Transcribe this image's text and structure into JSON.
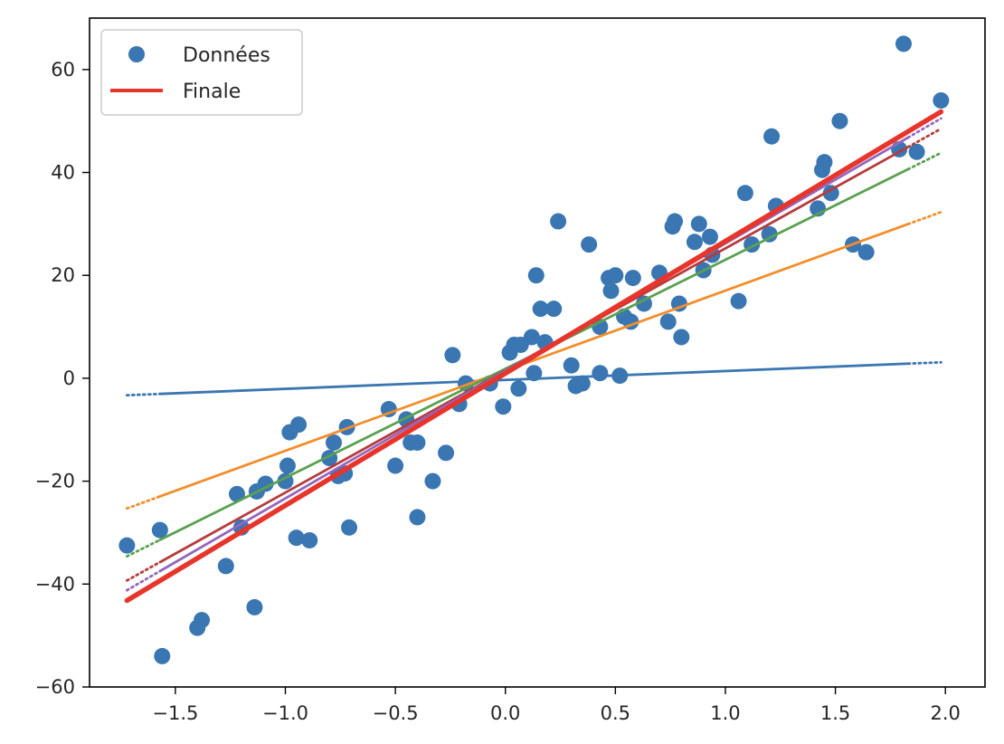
{
  "chart_data": {
    "type": "scatter",
    "title": "",
    "xlabel": "",
    "ylabel": "",
    "xlim": [
      -1.89,
      2.18
    ],
    "ylim": [
      -60,
      70
    ],
    "grid": false,
    "legend_placement": "top-left",
    "x_ticks": [
      -1.5,
      -1.0,
      -0.5,
      0.0,
      0.5,
      1.0,
      1.5,
      2.0
    ],
    "x_tick_labels": [
      "−1.5",
      "−1.0",
      "−0.5",
      "0.0",
      "0.5",
      "1.0",
      "1.5",
      "2.0"
    ],
    "y_ticks": [
      -60,
      -40,
      -20,
      0,
      20,
      40,
      60
    ],
    "y_tick_labels": [
      "−60",
      "−40",
      "−20",
      "0",
      "20",
      "40",
      "60"
    ],
    "legend": [
      {
        "label": "Données",
        "kind": "marker",
        "color": "#3a76b2"
      },
      {
        "label": "Finale",
        "kind": "line",
        "color": "#e8352b"
      }
    ],
    "series": [
      {
        "name": "Données",
        "kind": "scatter",
        "color": "#3a76b2",
        "points": [
          [
            -1.72,
            -32.5
          ],
          [
            -1.57,
            -29.5
          ],
          [
            -1.56,
            -54.0
          ],
          [
            -1.4,
            -48.5
          ],
          [
            -1.38,
            -47.0
          ],
          [
            -1.27,
            -36.5
          ],
          [
            -1.22,
            -22.5
          ],
          [
            -1.2,
            -29.0
          ],
          [
            -1.14,
            -44.5
          ],
          [
            -1.13,
            -22.0
          ],
          [
            -1.09,
            -20.5
          ],
          [
            -1.0,
            -20.0
          ],
          [
            -0.99,
            -17.0
          ],
          [
            -0.98,
            -10.5
          ],
          [
            -0.94,
            -9.0
          ],
          [
            -0.95,
            -31.0
          ],
          [
            -0.89,
            -31.5
          ],
          [
            -0.78,
            -12.5
          ],
          [
            -0.8,
            -15.5
          ],
          [
            -0.76,
            -19.0
          ],
          [
            -0.73,
            -18.5
          ],
          [
            -0.72,
            -9.5
          ],
          [
            -0.71,
            -29.0
          ],
          [
            -0.53,
            -6.0
          ],
          [
            -0.5,
            -17.0
          ],
          [
            -0.45,
            -8.0
          ],
          [
            -0.43,
            -12.5
          ],
          [
            -0.4,
            -12.5
          ],
          [
            -0.4,
            -27.0
          ],
          [
            -0.33,
            -20.0
          ],
          [
            -0.27,
            -14.5
          ],
          [
            -0.24,
            4.5
          ],
          [
            -0.21,
            -5.0
          ],
          [
            -0.18,
            -1.0
          ],
          [
            -0.07,
            -1.0
          ],
          [
            -0.01,
            -5.5
          ],
          [
            0.02,
            5.0
          ],
          [
            0.04,
            6.5
          ],
          [
            0.06,
            -2.0
          ],
          [
            0.07,
            6.5
          ],
          [
            0.12,
            8.0
          ],
          [
            0.13,
            1.0
          ],
          [
            0.14,
            20.0
          ],
          [
            0.16,
            13.5
          ],
          [
            0.18,
            7.0
          ],
          [
            0.22,
            13.5
          ],
          [
            0.24,
            30.5
          ],
          [
            0.3,
            2.5
          ],
          [
            0.32,
            -1.5
          ],
          [
            0.35,
            -1.0
          ],
          [
            0.38,
            26.0
          ],
          [
            0.43,
            10.0
          ],
          [
            0.43,
            1.0
          ],
          [
            0.47,
            19.5
          ],
          [
            0.48,
            17.0
          ],
          [
            0.5,
            20.0
          ],
          [
            0.52,
            0.5
          ],
          [
            0.54,
            12.0
          ],
          [
            0.57,
            11.0
          ],
          [
            0.58,
            19.5
          ],
          [
            0.63,
            14.5
          ],
          [
            0.7,
            20.5
          ],
          [
            0.74,
            11.0
          ],
          [
            0.76,
            29.5
          ],
          [
            0.77,
            30.5
          ],
          [
            0.79,
            14.5
          ],
          [
            0.8,
            8.0
          ],
          [
            0.86,
            26.5
          ],
          [
            0.88,
            30.0
          ],
          [
            0.9,
            21.0
          ],
          [
            0.93,
            27.5
          ],
          [
            0.94,
            24.0
          ],
          [
            1.06,
            15.0
          ],
          [
            1.09,
            36.0
          ],
          [
            1.12,
            26.0
          ],
          [
            1.2,
            28.0
          ],
          [
            1.21,
            47.0
          ],
          [
            1.23,
            33.5
          ],
          [
            1.42,
            33.0
          ],
          [
            1.44,
            40.5
          ],
          [
            1.45,
            42.0
          ],
          [
            1.48,
            36.0
          ],
          [
            1.52,
            50.0
          ],
          [
            1.58,
            26.0
          ],
          [
            1.64,
            24.5
          ],
          [
            1.79,
            44.5
          ],
          [
            1.81,
            65.0
          ],
          [
            1.87,
            44.0
          ],
          [
            1.98,
            54.0
          ]
        ]
      },
      {
        "name": "",
        "kind": "line",
        "color": "#3a76b2",
        "width": 2.8,
        "x": [
          -1.72,
          1.98
        ],
        "y": [
          -3.3,
          3.1
        ],
        "solid_range": [
          -1.57,
          1.83
        ]
      },
      {
        "name": "",
        "kind": "line",
        "color": "#f28e2b",
        "width": 2.8,
        "x": [
          -1.72,
          1.98
        ],
        "y": [
          -25.3,
          32.3
        ],
        "solid_range": [
          -1.57,
          1.83
        ]
      },
      {
        "name": "",
        "kind": "line",
        "color": "#59a14f",
        "width": 2.8,
        "x": [
          -1.72,
          1.98
        ],
        "y": [
          -34.6,
          43.8
        ],
        "solid_range": [
          -1.57,
          1.83
        ]
      },
      {
        "name": "",
        "kind": "line",
        "color": "#b83b3b",
        "width": 2.8,
        "x": [
          -1.72,
          1.98
        ],
        "y": [
          -39.3,
          48.5
        ],
        "solid_range": [
          -1.57,
          1.83
        ]
      },
      {
        "name": "",
        "kind": "line",
        "color": "#9467bd",
        "width": 2.8,
        "x": [
          -1.72,
          1.98
        ],
        "y": [
          -41.2,
          50.5
        ],
        "solid_range": [
          -1.57,
          1.83
        ]
      },
      {
        "name": "Finale",
        "kind": "line",
        "color": "#e8352b",
        "width": 5.5,
        "x": [
          -1.72,
          1.98
        ],
        "y": [
          -43.2,
          51.8
        ],
        "solid_range": [
          -1.72,
          1.98
        ]
      }
    ]
  }
}
